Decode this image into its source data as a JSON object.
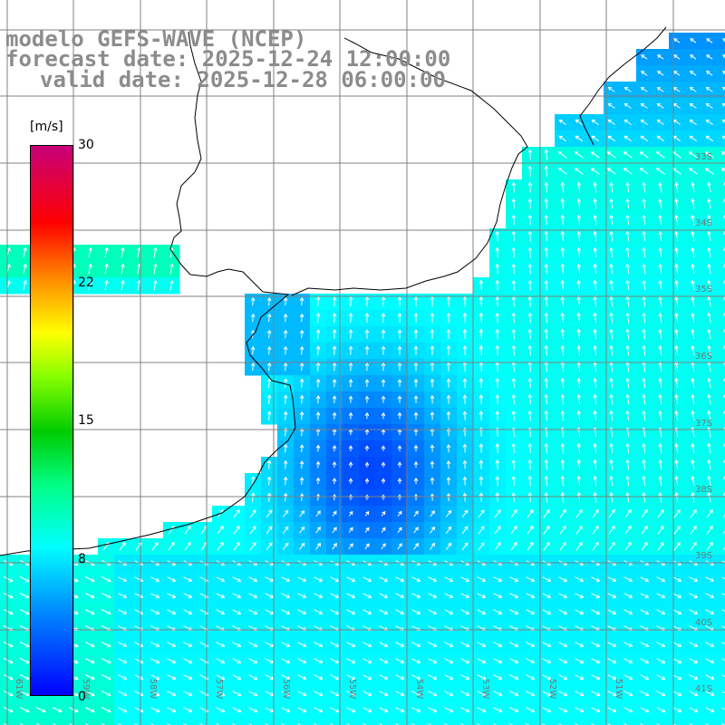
{
  "titles": {
    "line1": "modelo GEFS-WAVE (NCEP)",
    "line2": "forecast date: 2025-12-24 12:00:00",
    "line3": "valid date: 2025-12-28 06:00:00"
  },
  "colorbar": {
    "unit": "[m/s]",
    "ticks": [
      "30",
      "22",
      "15",
      "8",
      "0"
    ],
    "min": 0,
    "max": 30,
    "colors": [
      "#0000ff",
      "#0088ff",
      "#00ffff",
      "#00ff88",
      "#00cc00",
      "#88ff00",
      "#ffff00",
      "#ff8800",
      "#ff0000",
      "#c8007a"
    ]
  },
  "lon_labels": [
    "61W",
    "59W",
    "58W",
    "57W",
    "56W",
    "55W",
    "54W",
    "53W",
    "52W",
    "51W"
  ],
  "lat_labels": [
    "33S",
    "34S",
    "35S",
    "36S",
    "37S",
    "38S",
    "39S",
    "40S",
    "41S"
  ],
  "colors": {
    "land": "#ffffff",
    "grid": "#808080",
    "coast": "#000000",
    "arrow": "#ffffff",
    "title": "#8c8c8c"
  }
}
